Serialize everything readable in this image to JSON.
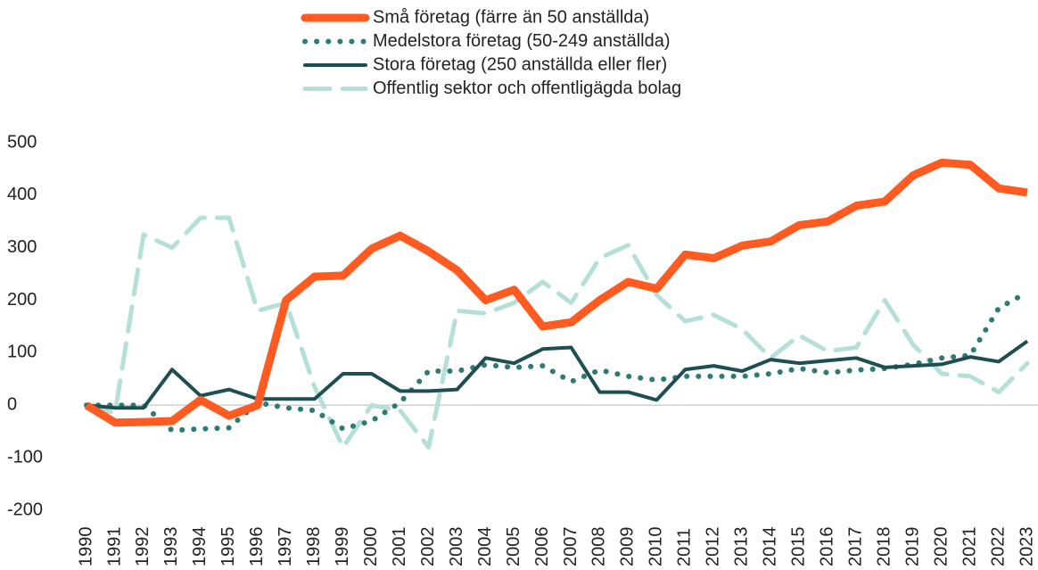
{
  "chart_data": {
    "type": "line",
    "categories": [
      "1990",
      "1991",
      "1992",
      "1993",
      "1994",
      "1995",
      "1996",
      "1997",
      "1998",
      "1999",
      "2000",
      "2001",
      "2002",
      "2003",
      "2004",
      "2005",
      "2006",
      "2007",
      "2008",
      "2009",
      "2010",
      "2011",
      "2012",
      "2013",
      "2014",
      "2015",
      "2016",
      "2017",
      "2018",
      "2019",
      "2020",
      "2021",
      "2022",
      "2023"
    ],
    "series": [
      {
        "name": "Små företag (färre än 50 anställda)",
        "color": "#ff5a1f",
        "style": "solid",
        "width": 9,
        "values": [
          0,
          -33,
          -32,
          -30,
          10,
          -20,
          0,
          200,
          245,
          247,
          298,
          323,
          293,
          257,
          200,
          220,
          150,
          158,
          200,
          235,
          222,
          287,
          280,
          304,
          312,
          343,
          350,
          380,
          388,
          438,
          462,
          458,
          413,
          405
        ]
      },
      {
        "name": "Medelstora företag (50-249 anställda)",
        "color": "#2e7a75",
        "style": "dotted",
        "width": 6,
        "values": [
          0,
          0,
          0,
          -48,
          -45,
          -43,
          5,
          -5,
          -10,
          -45,
          -30,
          5,
          65,
          65,
          77,
          72,
          75,
          45,
          67,
          55,
          48,
          55,
          55,
          55,
          60,
          70,
          62,
          67,
          70,
          78,
          90,
          95,
          185,
          215
        ]
      },
      {
        "name": "Stora företag (250 anställda eller fler)",
        "color": "#1d4f52",
        "style": "solid",
        "width": 4,
        "values": [
          0,
          -5,
          -5,
          68,
          18,
          30,
          12,
          12,
          12,
          60,
          60,
          27,
          27,
          30,
          90,
          80,
          107,
          110,
          25,
          25,
          10,
          68,
          75,
          65,
          87,
          80,
          85,
          90,
          72,
          75,
          78,
          92,
          83,
          122
        ]
      },
      {
        "name": "Offentlig sektor och offentligägda bolag",
        "color": "#b4e0d8",
        "style": "dashed",
        "width": 5,
        "values": [
          0,
          -15,
          325,
          300,
          357,
          357,
          180,
          195,
          35,
          -80,
          0,
          -10,
          -80,
          180,
          175,
          195,
          235,
          195,
          280,
          305,
          210,
          160,
          172,
          145,
          90,
          133,
          103,
          110,
          200,
          115,
          60,
          55,
          25,
          80
        ]
      }
    ],
    "ylim": [
      -200,
      500
    ],
    "yticks": [
      -200,
      -100,
      0,
      100,
      200,
      300,
      400,
      500
    ]
  }
}
